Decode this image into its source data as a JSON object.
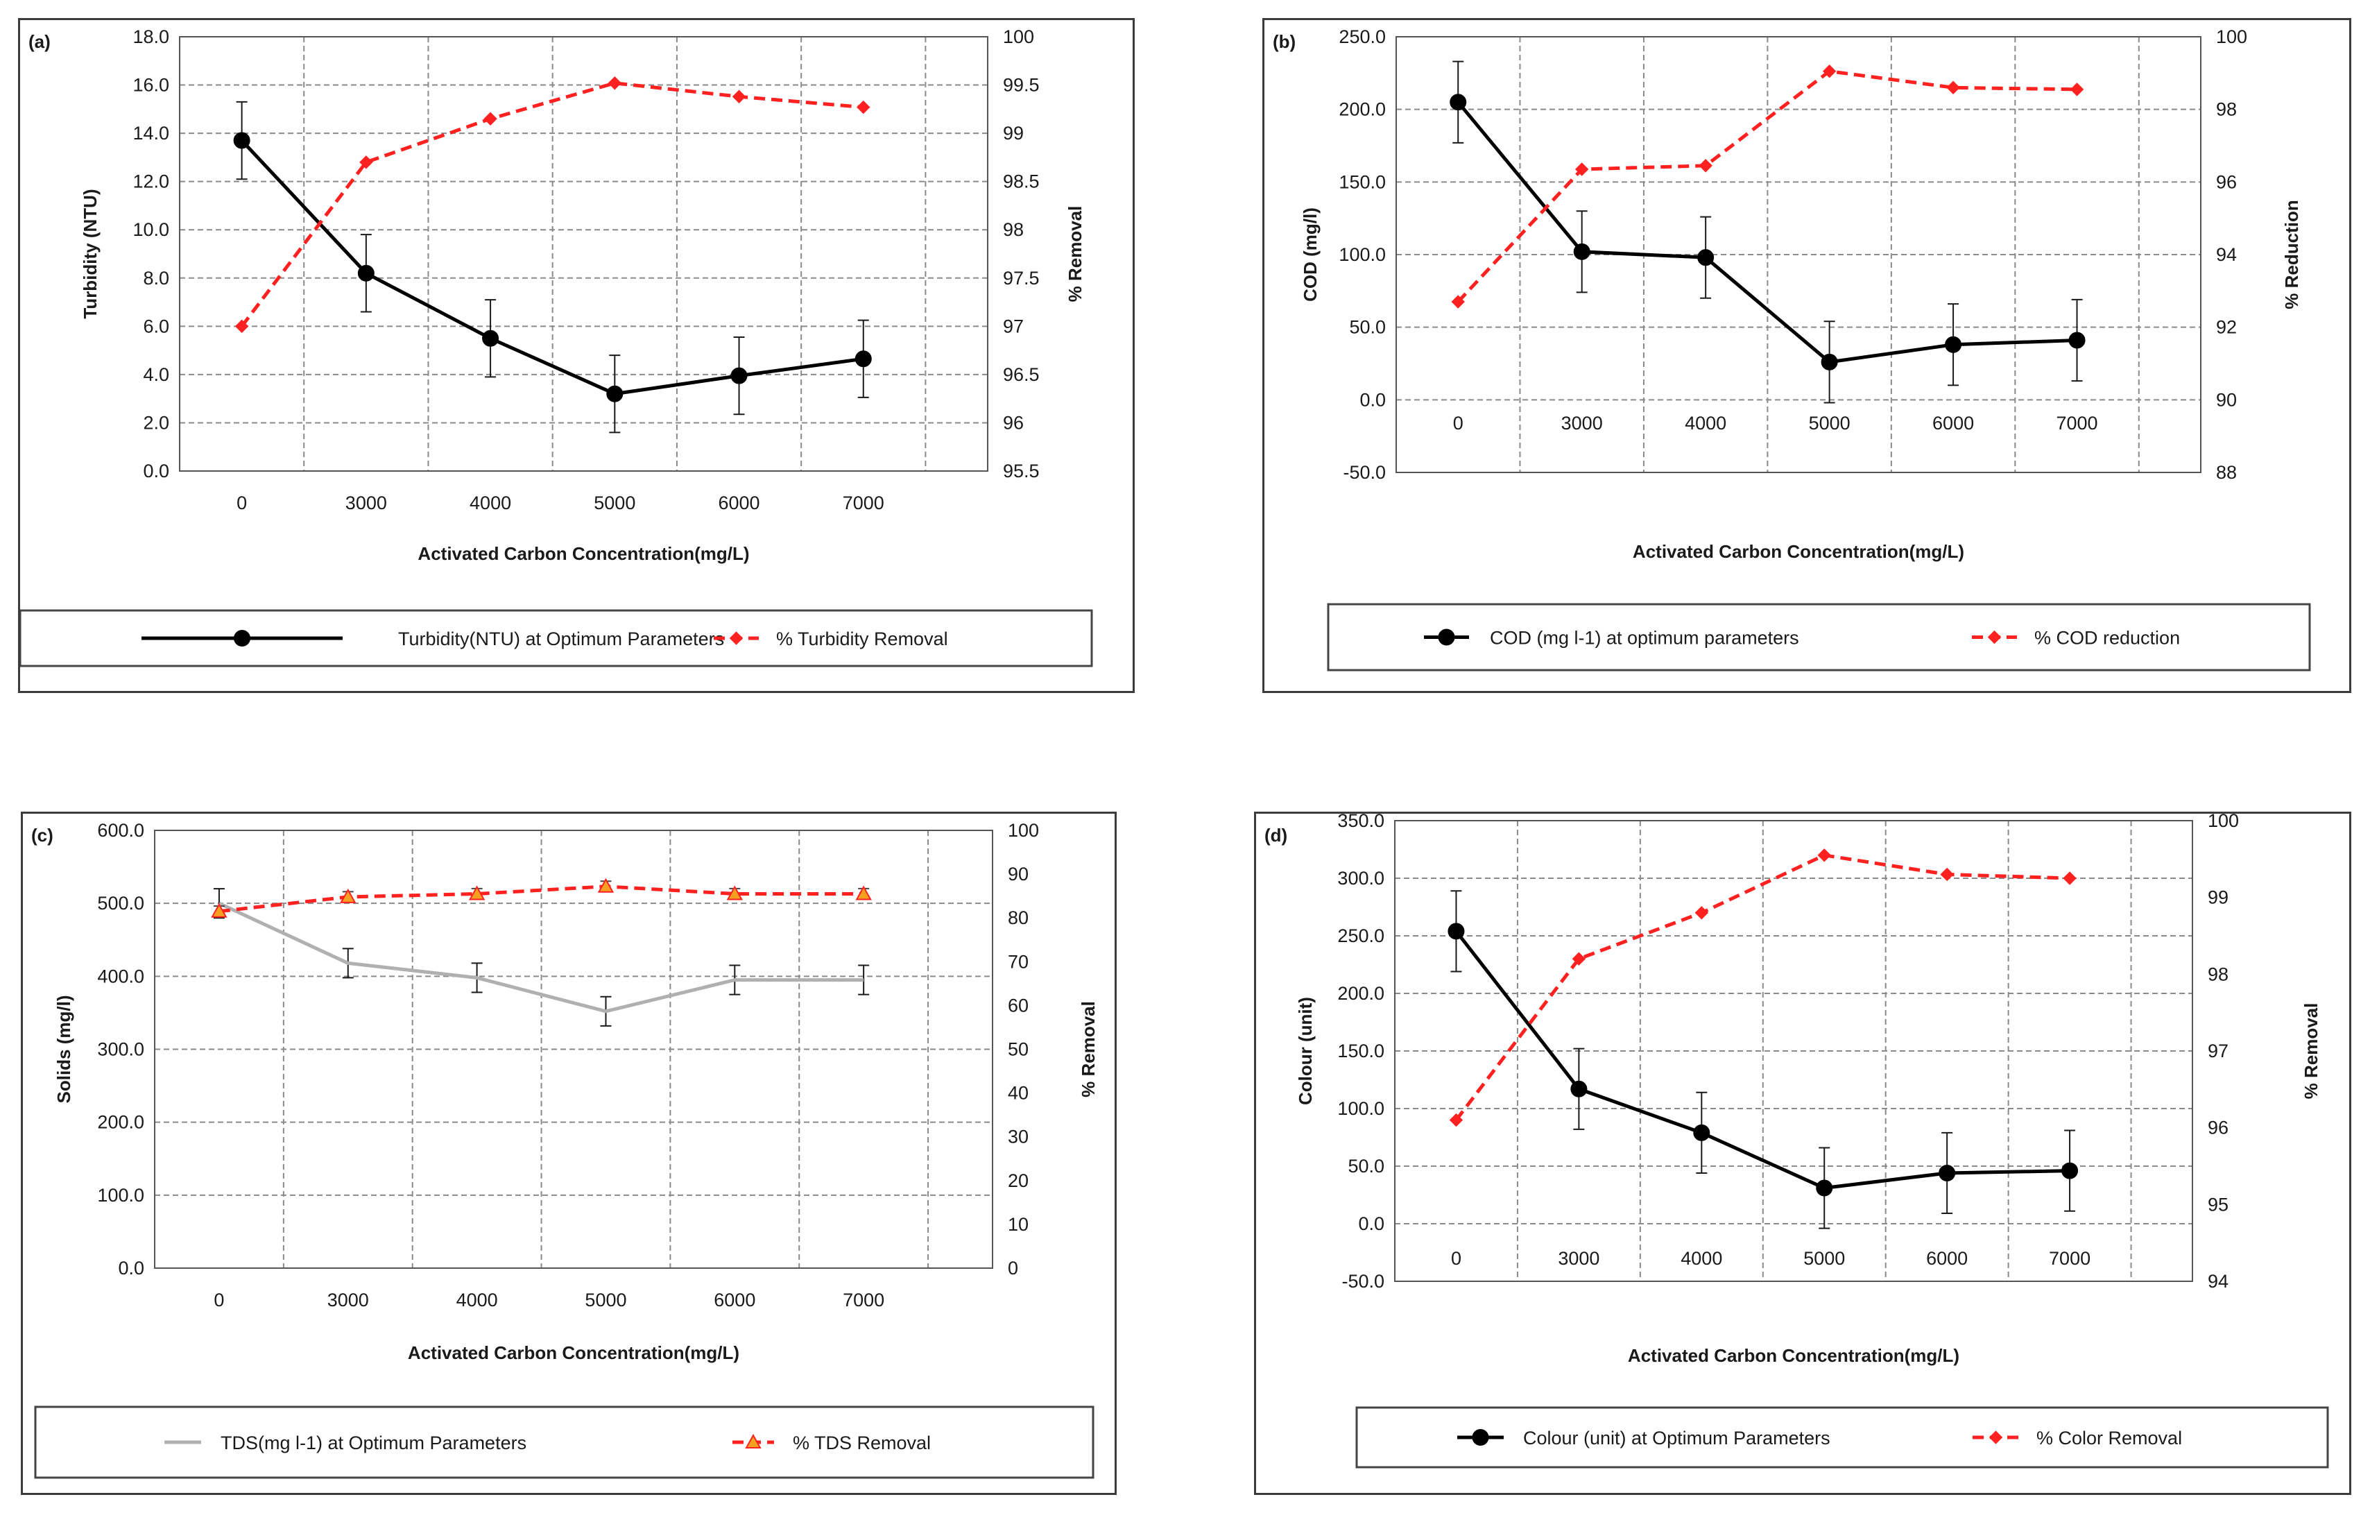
{
  "chart_data": [
    {
      "type": "line",
      "label": "(a)",
      "categories": [
        "0",
        "3000",
        "4000",
        "5000",
        "6000",
        "7000"
      ],
      "xlabel": "Activated Carbon Concentration(mg/L)",
      "ylabel": "Turbidity (NTU)",
      "y2label": "% Removal",
      "ylim": [
        0,
        18
      ],
      "yticks": [
        "0.0",
        "2.0",
        "4.0",
        "6.0",
        "8.0",
        "10.0",
        "12.0",
        "14.0",
        "16.0",
        "18.0"
      ],
      "y2lim": [
        95.5,
        100
      ],
      "y2ticks": [
        "95.5",
        "96",
        "96.5",
        "97",
        "97.5",
        "98",
        "98.5",
        "99",
        "99.5",
        "100"
      ],
      "grid": true,
      "series": [
        {
          "name": "Turbidity(NTU) at Optimum Parameters",
          "axis": "left",
          "values": [
            13.7,
            8.2,
            5.5,
            3.2,
            3.95,
            4.65
          ],
          "errors": [
            1.6,
            1.6,
            1.6,
            1.6,
            1.6,
            1.6
          ],
          "color": "#000000",
          "dash": false,
          "marker": "circle"
        },
        {
          "name": "% Turbidity Removal",
          "axis": "right",
          "values": [
            97.0,
            98.7,
            99.15,
            99.52,
            99.38,
            99.27
          ],
          "color": "#ff2020",
          "dash": true,
          "marker": "diamond"
        }
      ]
    },
    {
      "type": "line",
      "label": "(b)",
      "categories": [
        "0",
        "3000",
        "4000",
        "5000",
        "6000",
        "7000"
      ],
      "xlabel": "Activated Carbon Concentration(mg/L)",
      "ylabel": "COD (mg/l)",
      "y2label": "% Reduction",
      "ylim": [
        -50,
        250
      ],
      "yticks": [
        "-50.0",
        "0.0",
        "50.0",
        "100.0",
        "150.0",
        "200.0",
        "250.0"
      ],
      "y2lim": [
        88,
        100
      ],
      "y2ticks": [
        "88",
        "90",
        "92",
        "94",
        "96",
        "98",
        "100"
      ],
      "grid": true,
      "series": [
        {
          "name": "COD (mg l-1) at optimum parameters",
          "axis": "left",
          "values": [
            205,
            102,
            98,
            26,
            38,
            41
          ],
          "errors": [
            28,
            28,
            28,
            28,
            28,
            28
          ],
          "color": "#000000",
          "dash": false,
          "marker": "circle"
        },
        {
          "name": "% COD reduction",
          "axis": "right",
          "values": [
            92.7,
            96.35,
            96.45,
            99.05,
            98.6,
            98.55
          ],
          "color": "#ff2020",
          "dash": true,
          "marker": "diamond"
        }
      ]
    },
    {
      "type": "line",
      "label": "(c)",
      "categories": [
        "0",
        "3000",
        "4000",
        "5000",
        "6000",
        "7000"
      ],
      "xlabel": "Activated Carbon Concentration(mg/L)",
      "ylabel": "Solids (mg/l)",
      "y2label": "% Removal",
      "ylim": [
        0,
        600
      ],
      "yticks": [
        "0.0",
        "100.0",
        "200.0",
        "300.0",
        "400.0",
        "500.0",
        "600.0"
      ],
      "y2lim": [
        0,
        100
      ],
      "y2ticks": [
        "0",
        "10",
        "20",
        "30",
        "40",
        "50",
        "60",
        "70",
        "80",
        "90",
        "100"
      ],
      "grid": true,
      "series": [
        {
          "name": "TDS(mg l-1) at Optimum Parameters",
          "axis": "left",
          "values": [
            500,
            418,
            398,
            352,
            395,
            395
          ],
          "errors": [
            20,
            20,
            20,
            20,
            20,
            20
          ],
          "color": "#b0b0b0",
          "dash": false,
          "marker": "none"
        },
        {
          "name": "% TDS Removal",
          "axis": "right",
          "values": [
            81.5,
            84.8,
            85.5,
            87.2,
            85.5,
            85.5
          ],
          "errors": [
            1.2,
            1.2,
            1.2,
            1.2,
            1.2,
            1.2
          ],
          "color": "#ff2020",
          "dash": true,
          "marker": "triangle",
          "markerColor": "#f5a020"
        }
      ]
    },
    {
      "type": "line",
      "label": "(d)",
      "categories": [
        "0",
        "3000",
        "4000",
        "5000",
        "6000",
        "7000"
      ],
      "xlabel": "Activated Carbon Concentration(mg/L)",
      "ylabel": "Colour (unit)",
      "y2label": "% Removal",
      "ylim": [
        -50,
        350
      ],
      "yticks": [
        "-50.0",
        "0.0",
        "50.0",
        "100.0",
        "150.0",
        "200.0",
        "250.0",
        "300.0",
        "350.0"
      ],
      "y2lim": [
        94,
        100
      ],
      "y2ticks": [
        "94",
        "95",
        "96",
        "97",
        "98",
        "99",
        "100"
      ],
      "grid": true,
      "series": [
        {
          "name": "Colour (unit) at Optimum Parameters",
          "axis": "left",
          "values": [
            254,
            117,
            79,
            31,
            44,
            46
          ],
          "errors": [
            35,
            35,
            35,
            35,
            35,
            35
          ],
          "color": "#000000",
          "dash": false,
          "marker": "circle"
        },
        {
          "name": "% Color Removal",
          "axis": "right",
          "values": [
            96.1,
            98.2,
            98.8,
            99.55,
            99.3,
            99.25
          ],
          "color": "#ff2020",
          "dash": true,
          "marker": "diamond"
        }
      ]
    }
  ]
}
